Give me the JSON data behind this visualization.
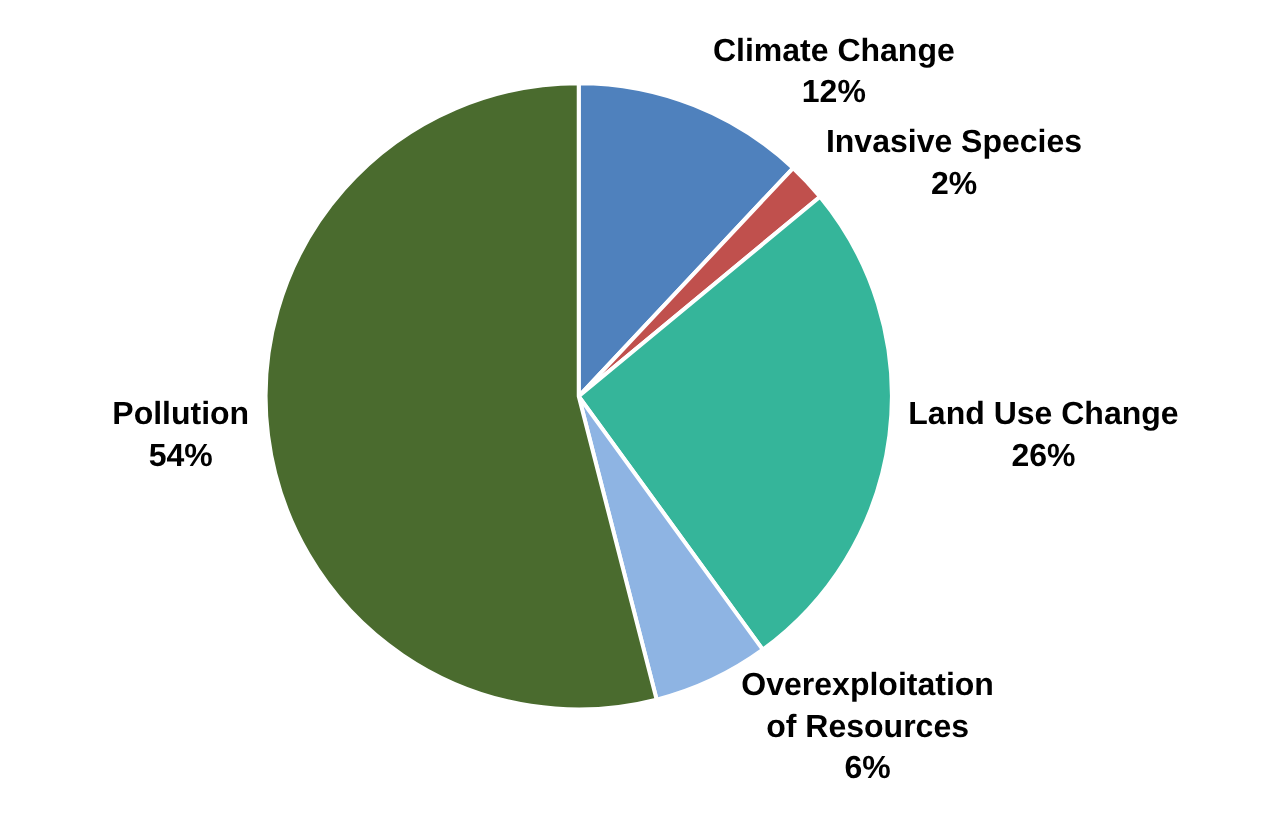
{
  "chart_data": {
    "type": "pie",
    "categories": [
      "Climate Change",
      "Invasive Species",
      "Land Use Change",
      "Overexploitation of Resources",
      "Pollution"
    ],
    "values": [
      12,
      2,
      26,
      6,
      54
    ],
    "value_labels": [
      "12%",
      "2%",
      "26%",
      "6%",
      "54%"
    ],
    "colors": [
      "#4f81bd",
      "#c0504d",
      "#35b59a",
      "#8eb4e3",
      "#4a6b2e"
    ],
    "legend": false
  }
}
